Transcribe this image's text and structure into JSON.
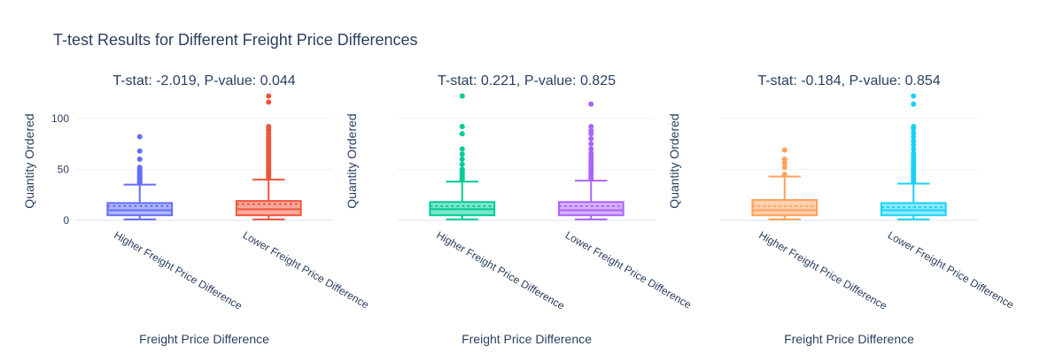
{
  "title": "T-test Results for Different Freight Price Differences",
  "chart_data": {
    "type": "box",
    "ylim": [
      0,
      125
    ],
    "y_ticks": [
      0,
      50,
      100
    ],
    "y_grid": true,
    "legend": "none",
    "panels": [
      {
        "subtitle": "T-stat: -2.019, P-value: 0.044",
        "xlabel": "Freight Price Difference",
        "ylabel": "Quantity Ordered",
        "show_y_ticks": true,
        "boxes": [
          {
            "category": "Higher Freight Price Difference",
            "color": "#636efa",
            "min": 1,
            "q1": 5,
            "median": 10,
            "mean": 14,
            "q3": 17,
            "upper_fence": 35,
            "outliers": [
              37,
              38,
              39,
              40,
              41,
              42,
              43,
              44,
              45,
              46,
              47,
              48,
              50,
              51,
              52,
              60,
              68,
              82
            ]
          },
          {
            "category": "Lower Freight Price Difference",
            "color": "#ef553b",
            "min": 1,
            "q1": 5,
            "median": 11,
            "mean": 16,
            "q3": 19,
            "upper_fence": 40,
            "outliers": [
              42,
              44,
              45,
              46,
              48,
              50,
              52,
              54,
              56,
              58,
              60,
              62,
              64,
              66,
              68,
              70,
              72,
              74,
              76,
              78,
              80,
              82,
              85,
              88,
              90,
              92,
              116,
              122
            ]
          }
        ]
      },
      {
        "subtitle": "T-stat: 0.221, P-value: 0.825",
        "xlabel": "Freight Price Difference",
        "ylabel": "Quantity Ordered",
        "show_y_ticks": false,
        "boxes": [
          {
            "category": "Higher Freight Price Difference",
            "color": "#00cc96",
            "min": 1,
            "q1": 5,
            "median": 11,
            "mean": 14,
            "q3": 18,
            "upper_fence": 38,
            "outliers": [
              40,
              42,
              44,
              46,
              48,
              50,
              55,
              60,
              65,
              70,
              85,
              92,
              122
            ]
          },
          {
            "category": "Lower Freight Price Difference",
            "color": "#ab63fa",
            "min": 1,
            "q1": 5,
            "median": 10,
            "mean": 14,
            "q3": 18,
            "upper_fence": 39,
            "outliers": [
              41,
              43,
              45,
              47,
              49,
              51,
              53,
              55,
              57,
              60,
              63,
              66,
              70,
              75,
              80,
              85,
              88,
              92,
              114
            ]
          }
        ]
      },
      {
        "subtitle": "T-stat: -0.184, P-value: 0.854",
        "xlabel": "Freight Price Difference",
        "ylabel": "Quantity Ordered",
        "show_y_ticks": false,
        "boxes": [
          {
            "category": "Higher Freight Price Difference",
            "color": "#ffa15a",
            "min": 1,
            "q1": 5,
            "median": 10,
            "mean": 14,
            "q3": 20,
            "upper_fence": 43,
            "outliers": [
              45,
              52,
              56,
              60,
              69
            ]
          },
          {
            "category": "Lower Freight Price Difference",
            "color": "#19d3f3",
            "min": 1,
            "q1": 5,
            "median": 10,
            "mean": 13,
            "q3": 17,
            "upper_fence": 36,
            "outliers": [
              38,
              40,
              42,
              44,
              46,
              48,
              50,
              52,
              54,
              56,
              58,
              60,
              63,
              66,
              70,
              74,
              78,
              82,
              86,
              90,
              92,
              114,
              122
            ]
          }
        ]
      }
    ]
  }
}
